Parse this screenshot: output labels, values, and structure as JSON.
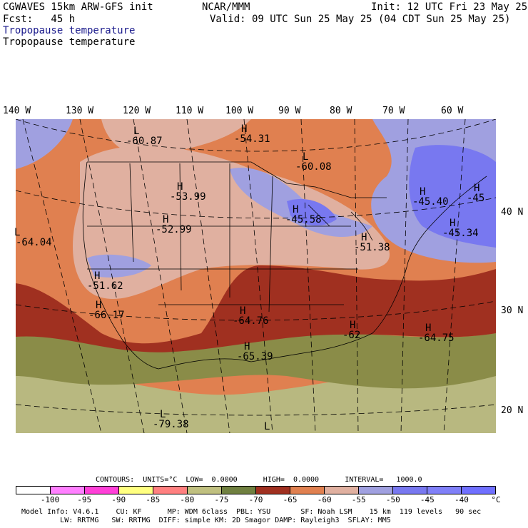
{
  "header": {
    "title_left": "CGWAVES 15km ARW-GFS init",
    "title_center": "NCAR/MMM",
    "init": "Init: 12 UTC Fri 23 May 25",
    "fcst": "Fcst:   45 h",
    "valid": "Valid: 09 UTC Sun 25 May 25 (04 CDT Sun 25 May 25)",
    "field_label_1": "Tropopause temperature",
    "field_label_2": "Tropopause temperature"
  },
  "longitude_labels": [
    "140 W",
    "130 W",
    "120 W",
    "110 W",
    "100 W",
    "90 W",
    "80 W",
    "70 W",
    "60 W"
  ],
  "latitude_labels": [
    "40 N",
    "30 N",
    "20 N"
  ],
  "pressure_centers": [
    {
      "type": "L",
      "value": "-60.87"
    },
    {
      "type": "H",
      "value": "-54.31"
    },
    {
      "type": "L",
      "value": "-60.08"
    },
    {
      "type": "H",
      "value": "-53.99"
    },
    {
      "type": "H",
      "value": "-52.99"
    },
    {
      "type": "L",
      "value": "-64.04"
    },
    {
      "type": "H",
      "value": "-45.40"
    },
    {
      "type": "H",
      "value": "-45"
    },
    {
      "type": "H",
      "value": "-45.34"
    },
    {
      "type": "H",
      "value": "-45.58"
    },
    {
      "type": "H",
      "value": "-51.38"
    },
    {
      "type": "H",
      "value": "-51.62"
    },
    {
      "type": "H",
      "value": "-66.17"
    },
    {
      "type": "H",
      "value": "-64.76"
    },
    {
      "type": "H",
      "value": "-62"
    },
    {
      "type": "H",
      "value": "-64.75"
    },
    {
      "type": "H",
      "value": "-65.39"
    },
    {
      "type": "L",
      "value": "-79.38"
    },
    {
      "type": "L",
      "value": ""
    }
  ],
  "contours_info": "CONTOURS:  UNITS=°C  LOW=  0.0000      HIGH=  0.0000      INTERVAL=   1000.0",
  "legend": {
    "colors": [
      "#ffffff",
      "#ff80ff",
      "#ff40d8",
      "#ffff80",
      "#ff8080",
      "#c0c080",
      "#708040",
      "#a03020",
      "#e08050",
      "#e0b0a0",
      "#a0a0e0",
      "#7878f0",
      "#8080f8",
      "#7070ff"
    ],
    "ticks": [
      "-100",
      "-95",
      "-90",
      "-85",
      "-80",
      "-75",
      "-70",
      "-65",
      "-60",
      "-55",
      "-50",
      "-45",
      "-40",
      "°C"
    ]
  },
  "footer": {
    "line1": "Model Info: V4.6.1    CU: KF      MP: WDM 6class  PBL: YSU       SF: Noah LSM    15 km  119 levels   90 sec",
    "line2": "         LW: RRTMG   SW: RRTMG  DIFF: simple KM: 2D Smagor DAMP: Rayleigh3  SFLAY: MM5"
  },
  "colors": {
    "band_lt_80": "#b8b880",
    "band_75": "#8a8c48",
    "band_65": "#a03020",
    "band_60": "#e08050",
    "band_55": "#e0b0a0",
    "band_50": "#a0a0e0",
    "band_45": "#7878f0"
  }
}
